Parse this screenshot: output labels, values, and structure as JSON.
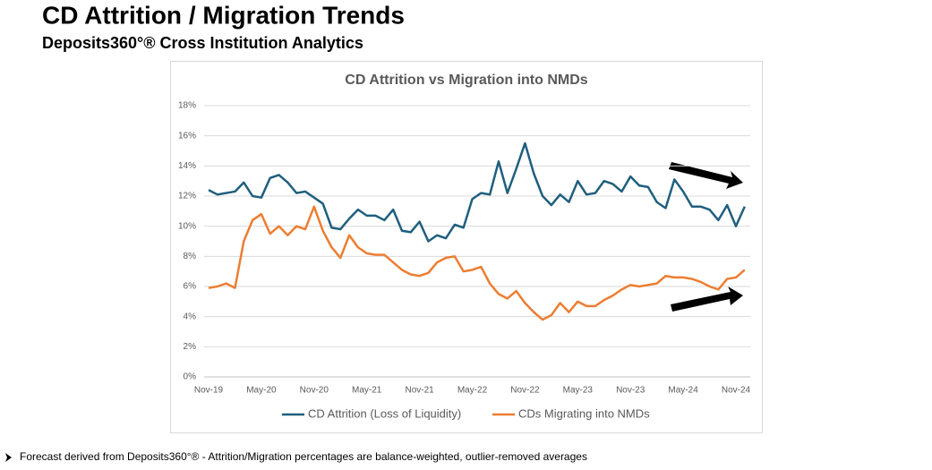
{
  "header": {
    "title": "CD Attrition / Migration Trends",
    "subtitle": "Deposits360°® Cross Institution Analytics"
  },
  "footnote": "Forecast derived from Deposits360°® - Attrition/Migration percentages are balance-weighted, outlier-removed averages",
  "chart_data": {
    "type": "line",
    "title": "CD Attrition vs Migration into NMDs",
    "categories": [
      "Nov-19",
      null,
      null,
      null,
      null,
      null,
      "May-20",
      null,
      null,
      null,
      null,
      null,
      "Nov-20",
      null,
      null,
      null,
      null,
      null,
      "May-21",
      null,
      null,
      null,
      null,
      null,
      "Nov-21",
      null,
      null,
      null,
      null,
      null,
      "May-22",
      null,
      null,
      null,
      null,
      null,
      "Nov-22",
      null,
      null,
      null,
      null,
      null,
      "May-23",
      null,
      null,
      null,
      null,
      null,
      "Nov-23",
      null,
      null,
      null,
      null,
      null,
      "May-24",
      null,
      null,
      null,
      null,
      null,
      "Nov-24",
      null
    ],
    "series": [
      {
        "name": "CD Attrition (Loss of Liquidity)",
        "color": "#1f5f7e",
        "values": [
          12.4,
          12.1,
          12.2,
          12.3,
          12.9,
          12.0,
          11.9,
          13.2,
          13.4,
          12.9,
          12.2,
          12.3,
          11.9,
          11.5,
          9.9,
          9.8,
          10.5,
          11.1,
          10.7,
          10.7,
          10.4,
          11.1,
          9.7,
          9.6,
          10.3,
          9.0,
          9.4,
          9.2,
          10.1,
          9.9,
          11.8,
          12.2,
          12.1,
          14.3,
          12.2,
          13.8,
          15.5,
          13.5,
          12.0,
          11.4,
          12.1,
          11.6,
          13.0,
          12.1,
          12.2,
          13.0,
          12.8,
          12.3,
          13.3,
          12.7,
          12.6,
          11.6,
          11.2,
          13.1,
          12.3,
          11.3,
          11.3,
          11.1,
          10.4,
          11.4,
          10.0,
          11.3
        ]
      },
      {
        "name": "CDs Migrating into NMDs",
        "color": "#ed7d31",
        "values": [
          5.9,
          6.0,
          6.2,
          5.9,
          9.0,
          10.4,
          10.8,
          9.5,
          10.0,
          9.4,
          10.0,
          9.8,
          11.3,
          9.7,
          8.6,
          7.9,
          9.4,
          8.6,
          8.2,
          8.1,
          8.1,
          7.6,
          7.1,
          6.8,
          6.7,
          6.9,
          7.6,
          7.9,
          8.0,
          7.0,
          7.1,
          7.3,
          6.2,
          5.5,
          5.2,
          5.7,
          4.9,
          4.3,
          3.8,
          4.1,
          4.9,
          4.3,
          5.0,
          4.7,
          4.7,
          5.1,
          5.4,
          5.8,
          6.1,
          6.0,
          6.1,
          6.2,
          6.7,
          6.6,
          6.6,
          6.5,
          6.3,
          6.0,
          5.8,
          6.5,
          6.6,
          7.1
        ]
      }
    ],
    "ylim": [
      0,
      18
    ],
    "yticks": [
      {
        "value": 0,
        "label": "0%"
      },
      {
        "value": 2,
        "label": "2%"
      },
      {
        "value": 4,
        "label": "4%"
      },
      {
        "value": 6,
        "label": "6%"
      },
      {
        "value": 8,
        "label": "8%"
      },
      {
        "value": 10,
        "label": "10%"
      },
      {
        "value": 12,
        "label": "12%"
      },
      {
        "value": 14,
        "label": "14%"
      },
      {
        "value": 16,
        "label": "16%"
      },
      {
        "value": 18,
        "label": "18%"
      }
    ],
    "grid": true
  }
}
